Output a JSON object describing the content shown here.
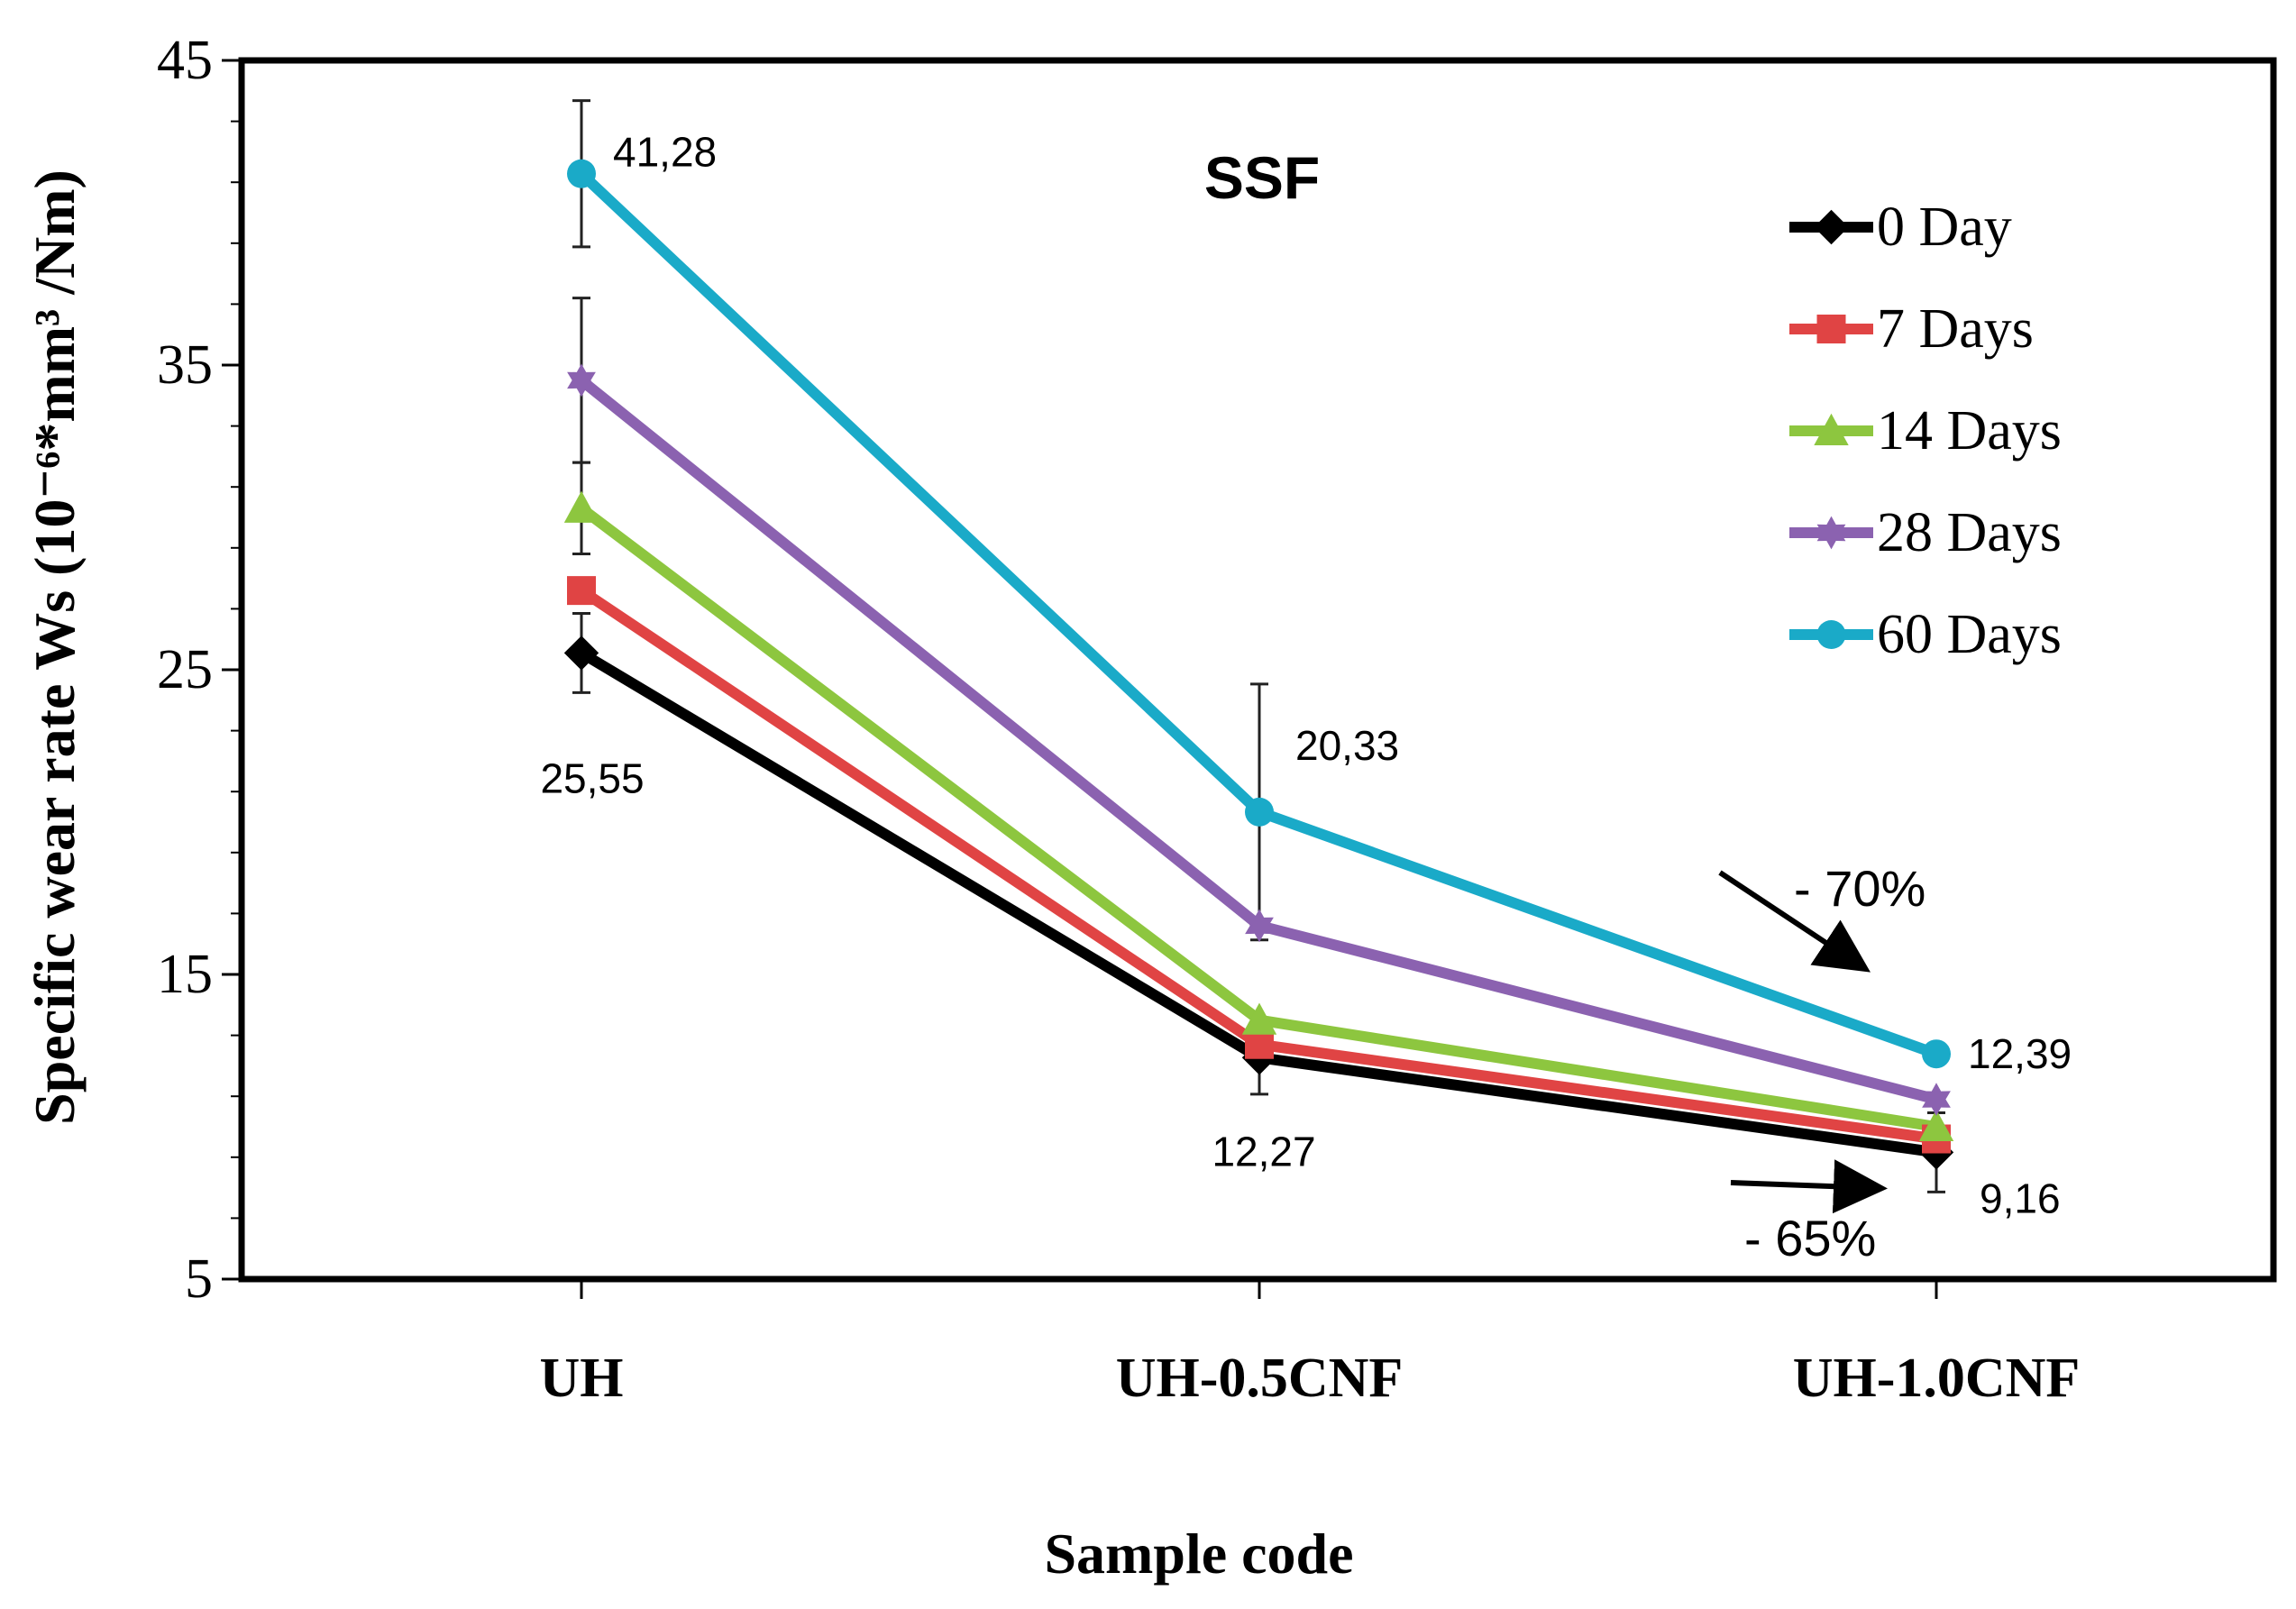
{
  "chart_data": {
    "type": "line",
    "title": "SSF",
    "xlabel": "Sample code",
    "ylabel": "Specific wear rate Ws (10⁻⁶*mm³ /Nm)",
    "categories": [
      "UH",
      "UH-0.5CNF",
      "UH-1.0CNF"
    ],
    "ylim": [
      5,
      45
    ],
    "yticks": [
      5,
      15,
      25,
      35,
      45
    ],
    "legend_position": "top-right",
    "series": [
      {
        "name": "0 Day",
        "color": "#000000",
        "marker": "diamond",
        "values": [
          25.55,
          12.27,
          9.16
        ],
        "errors": [
          1.3,
          1.2,
          1.3
        ]
      },
      {
        "name": "7 Days",
        "color": "#e04444",
        "marker": "square",
        "values": [
          27.6,
          12.7,
          9.6
        ],
        "errors": [
          0,
          0,
          0
        ]
      },
      {
        "name": "14 Days",
        "color": "#8dc63f",
        "marker": "triangle",
        "values": [
          30.3,
          13.5,
          10.0
        ],
        "errors": [
          1.5,
          0,
          0
        ]
      },
      {
        "name": "28 Days",
        "color": "#8b62b0",
        "marker": "star",
        "values": [
          34.5,
          16.6,
          10.9
        ],
        "errors": [
          2.7,
          0,
          0
        ]
      },
      {
        "name": "60 Days",
        "color": "#1aaac8",
        "marker": "circle",
        "values": [
          41.28,
          20.33,
          12.39
        ],
        "errors": [
          2.4,
          4.2,
          0
        ]
      }
    ],
    "data_labels": [
      {
        "text": "41,28",
        "series": "60 Days",
        "category": "UH"
      },
      {
        "text": "25,55",
        "series": "0 Day",
        "category": "UH"
      },
      {
        "text": "20,33",
        "series": "60 Days",
        "category": "UH-0.5CNF"
      },
      {
        "text": "12,27",
        "series": "0 Day",
        "category": "UH-0.5CNF"
      },
      {
        "text": "12,39",
        "series": "60 Days",
        "category": "UH-1.0CNF"
      },
      {
        "text": "9,16",
        "series": "0 Day",
        "category": "UH-1.0CNF"
      }
    ],
    "annotations": [
      {
        "text": "- 70%",
        "target_series": "60 Days"
      },
      {
        "text": "- 65%",
        "target_series": "0 Day"
      }
    ]
  }
}
